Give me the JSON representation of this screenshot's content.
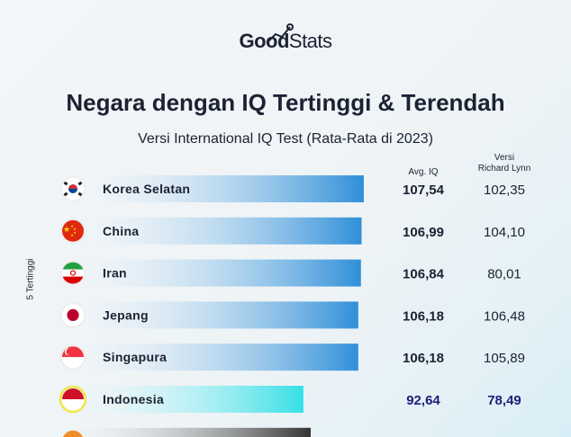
{
  "brand": {
    "good": "Good",
    "stats": "Stats"
  },
  "title": "Negara dengan IQ Tertinggi & Terendah",
  "subtitle": "Versi International IQ Test (Rata-Rata di 2023)",
  "columns": {
    "avg": "Avg. IQ",
    "rl_line1": "Versi",
    "rl_line2": "Richard Lynn"
  },
  "group_label": "5 Tertinggi",
  "colors": {
    "bar_blue": "#2f8fd8",
    "bar_highlight": "#35e0e6",
    "bar_dark": "#333333",
    "text": "#1c2233",
    "highlight_text": "#1a1f7a"
  },
  "chart_data": {
    "type": "bar",
    "orientation": "horizontal",
    "title": "Negara dengan IQ Tertinggi & Terendah",
    "subtitle": "Versi International IQ Test (Rata-Rata di 2023)",
    "categories": [
      "Korea Selatan",
      "China",
      "Iran",
      "Jepang",
      "Singapura",
      "Indonesia"
    ],
    "series": [
      {
        "name": "Avg. IQ",
        "values": [
          107.54,
          106.99,
          106.84,
          106.18,
          106.18,
          92.64
        ],
        "labels": [
          "107,54",
          "106,99",
          "106,84",
          "106,18",
          "106,18",
          "92,64"
        ]
      },
      {
        "name": "Versi Richard Lynn",
        "values": [
          102.35,
          104.1,
          80.01,
          106.48,
          105.89,
          78.49
        ],
        "labels": [
          "102,35",
          "104,10",
          "80,01",
          "106,48",
          "105,89",
          "78,49"
        ]
      }
    ],
    "flags": [
      "flag-korea-icon",
      "flag-china-icon",
      "flag-iran-icon",
      "flag-japan-icon",
      "flag-singapore-icon",
      "flag-indonesia-icon"
    ],
    "highlight": "Indonesia",
    "group": "5 Tertinggi"
  }
}
